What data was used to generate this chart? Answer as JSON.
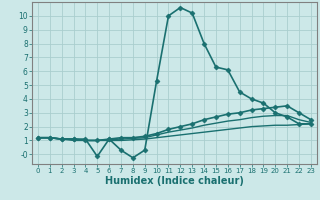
{
  "xlabel": "Humidex (Indice chaleur)",
  "xlim": [
    -0.5,
    23.5
  ],
  "ylim": [
    -0.7,
    11.0
  ],
  "yticks": [
    0,
    1,
    2,
    3,
    4,
    5,
    6,
    7,
    8,
    9,
    10
  ],
  "ytick_labels": [
    "-0",
    "1",
    "2",
    "3",
    "4",
    "5",
    "6",
    "7",
    "8",
    "9",
    "10"
  ],
  "xticks": [
    0,
    1,
    2,
    3,
    4,
    5,
    6,
    7,
    8,
    9,
    10,
    11,
    12,
    13,
    14,
    15,
    16,
    17,
    18,
    19,
    20,
    21,
    22,
    23
  ],
  "background_color": "#cce8e8",
  "grid_color": "#aacece",
  "line_color": "#1a7070",
  "lines": [
    {
      "x": [
        0,
        1,
        2,
        3,
        4,
        5,
        6,
        7,
        8,
        9,
        10,
        11,
        12,
        13,
        14,
        15,
        16,
        17,
        18,
        19,
        20,
        21,
        22,
        23
      ],
      "y": [
        1.2,
        1.2,
        1.1,
        1.1,
        1.1,
        -0.15,
        1.1,
        0.3,
        -0.25,
        0.3,
        5.3,
        10.0,
        10.6,
        10.2,
        8.0,
        6.3,
        6.1,
        4.5,
        4.0,
        3.7,
        3.0,
        2.7,
        2.2,
        2.2
      ],
      "marker": "D",
      "markersize": 2.5,
      "linewidth": 1.2
    },
    {
      "x": [
        0,
        1,
        2,
        3,
        4,
        5,
        6,
        7,
        8,
        9,
        10,
        11,
        12,
        13,
        14,
        15,
        16,
        17,
        18,
        19,
        20,
        21,
        22,
        23
      ],
      "y": [
        1.2,
        1.2,
        1.1,
        1.1,
        1.0,
        1.0,
        1.1,
        1.2,
        1.2,
        1.3,
        1.5,
        1.8,
        2.0,
        2.2,
        2.5,
        2.7,
        2.9,
        3.0,
        3.2,
        3.3,
        3.4,
        3.5,
        3.0,
        2.5
      ],
      "marker": "D",
      "markersize": 2.5,
      "linewidth": 1.2
    },
    {
      "x": [
        0,
        1,
        2,
        3,
        4,
        5,
        6,
        7,
        8,
        9,
        10,
        11,
        12,
        13,
        14,
        15,
        16,
        17,
        18,
        19,
        20,
        21,
        22,
        23
      ],
      "y": [
        1.2,
        1.2,
        1.1,
        1.1,
        1.0,
        1.0,
        1.05,
        1.1,
        1.15,
        1.2,
        1.4,
        1.6,
        1.75,
        1.9,
        2.1,
        2.25,
        2.4,
        2.5,
        2.65,
        2.75,
        2.8,
        2.8,
        2.5,
        2.3
      ],
      "marker": null,
      "markersize": 0,
      "linewidth": 1.0
    },
    {
      "x": [
        0,
        1,
        2,
        3,
        4,
        5,
        6,
        7,
        8,
        9,
        10,
        11,
        12,
        13,
        14,
        15,
        16,
        17,
        18,
        19,
        20,
        21,
        22,
        23
      ],
      "y": [
        1.2,
        1.2,
        1.1,
        1.0,
        1.0,
        1.0,
        1.0,
        1.0,
        1.05,
        1.1,
        1.2,
        1.3,
        1.4,
        1.5,
        1.6,
        1.7,
        1.8,
        1.9,
        2.0,
        2.05,
        2.1,
        2.1,
        2.15,
        2.2
      ],
      "marker": null,
      "markersize": 0,
      "linewidth": 1.0
    }
  ]
}
